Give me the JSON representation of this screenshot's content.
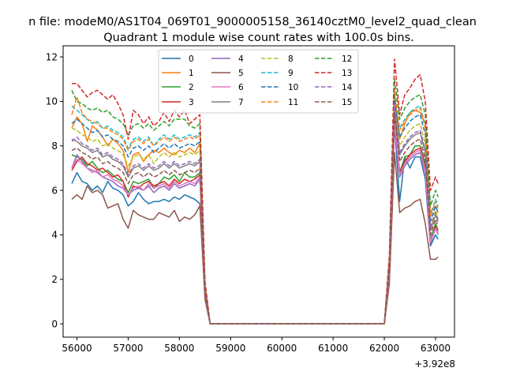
{
  "chart_data": {
    "type": "line",
    "suptitle": "n file: modeM0/AS1T04_069T01_9000005158_36140cztM0_level2_quad_clean",
    "title": "Quadrant 1 module wise count rates with 100.0s bins.",
    "xlabel": "",
    "ylabel": "",
    "x_offset_label": "+3.92e8",
    "xlim": [
      55730,
      63370
    ],
    "ylim": [
      -0.6,
      12.5
    ],
    "xticks": [
      56000,
      57000,
      58000,
      59000,
      60000,
      61000,
      62000,
      63000
    ],
    "xtick_labels": [
      "56000",
      "57000",
      "58000",
      "59000",
      "60000",
      "61000",
      "62000",
      "63000"
    ],
    "yticks": [
      0,
      2,
      4,
      6,
      8,
      10,
      12
    ],
    "ytick_labels": [
      "0",
      "2",
      "4",
      "6",
      "8",
      "10",
      "12"
    ],
    "legend_position": "upper center",
    "x": [
      55900,
      56000,
      56100,
      56200,
      56300,
      56400,
      56500,
      56600,
      56700,
      56800,
      56900,
      57000,
      57100,
      57200,
      57300,
      57400,
      57500,
      57600,
      57700,
      57800,
      57900,
      58000,
      58100,
      58200,
      58300,
      58400,
      58500,
      58600,
      58700,
      62000,
      62100,
      62200,
      62300,
      62400,
      62500,
      62600,
      62700,
      62800,
      62900,
      63000,
      63050
    ],
    "series": [
      {
        "name": "0",
        "color": "#1f77b4",
        "dash": false,
        "values": [
          6.3,
          6.8,
          6.4,
          6.3,
          6.0,
          6.2,
          5.9,
          6.4,
          6.1,
          6.0,
          5.8,
          5.3,
          5.5,
          5.9,
          5.6,
          5.4,
          5.5,
          5.5,
          5.6,
          5.5,
          5.7,
          5.6,
          5.8,
          5.7,
          5.6,
          5.4,
          1.3,
          0,
          0,
          0,
          2.0,
          9.0,
          5.5,
          7.5,
          7.0,
          7.5,
          7.5,
          6.5,
          3.5,
          4.0,
          3.8
        ]
      },
      {
        "name": "1",
        "color": "#ff7f0e",
        "dash": false,
        "values": [
          8.8,
          9.3,
          9.0,
          8.2,
          8.9,
          8.7,
          8.4,
          8.0,
          8.3,
          8.1,
          7.8,
          6.8,
          7.6,
          7.7,
          7.3,
          7.6,
          7.8,
          7.7,
          7.9,
          7.7,
          7.6,
          7.8,
          7.7,
          7.9,
          7.7,
          8.1,
          1.6,
          0,
          0,
          0,
          2.8,
          10.3,
          8.3,
          9.0,
          9.5,
          9.6,
          9.5,
          9.0,
          5.0,
          5.3,
          5.0
        ]
      },
      {
        "name": "2",
        "color": "#2ca02c",
        "dash": false,
        "values": [
          7.6,
          7.5,
          7.4,
          7.1,
          7.3,
          7.0,
          6.8,
          6.9,
          6.7,
          6.5,
          6.4,
          5.9,
          6.4,
          6.3,
          6.4,
          6.5,
          6.1,
          6.3,
          6.6,
          6.5,
          6.7,
          6.4,
          6.8,
          6.6,
          6.6,
          6.8,
          1.4,
          0,
          0,
          0,
          2.4,
          9.3,
          6.8,
          7.5,
          7.6,
          8.0,
          8.0,
          7.2,
          3.8,
          4.5,
          4.2
        ]
      },
      {
        "name": "3",
        "color": "#d62728",
        "dash": false,
        "values": [
          6.9,
          7.3,
          7.5,
          7.2,
          7.1,
          6.9,
          7.0,
          6.8,
          6.6,
          6.7,
          6.4,
          5.7,
          6.2,
          6.1,
          6.3,
          6.4,
          6.2,
          6.3,
          6.4,
          6.2,
          6.5,
          6.3,
          6.5,
          6.4,
          6.5,
          6.7,
          1.4,
          0,
          0,
          0,
          2.3,
          9.2,
          6.8,
          7.3,
          7.6,
          7.8,
          7.9,
          7.0,
          3.6,
          4.4,
          4.1
        ]
      },
      {
        "name": "4",
        "color": "#9467bd",
        "dash": false,
        "values": [
          7.0,
          7.6,
          7.3,
          7.0,
          6.9,
          6.8,
          6.6,
          6.5,
          6.4,
          6.2,
          6.1,
          5.8,
          6.0,
          6.1,
          6.0,
          6.2,
          5.9,
          6.1,
          6.2,
          6.0,
          6.3,
          6.1,
          6.2,
          6.3,
          6.2,
          6.5,
          1.4,
          0,
          0,
          0,
          2.2,
          9.0,
          6.6,
          7.1,
          7.4,
          7.6,
          7.7,
          6.8,
          3.6,
          4.3,
          4.0
        ]
      },
      {
        "name": "5",
        "color": "#8c564b",
        "dash": false,
        "values": [
          5.6,
          5.8,
          5.6,
          6.2,
          5.9,
          6.0,
          5.8,
          5.2,
          5.3,
          5.4,
          4.7,
          4.3,
          5.1,
          4.9,
          4.8,
          4.7,
          4.7,
          5.0,
          4.9,
          4.8,
          5.1,
          4.6,
          4.8,
          4.7,
          4.9,
          5.3,
          1.1,
          0,
          0,
          0,
          1.8,
          7.7,
          5.0,
          5.2,
          5.3,
          5.5,
          5.6,
          4.5,
          2.9,
          2.9,
          3.0
        ]
      },
      {
        "name": "6",
        "color": "#e377c2",
        "dash": false,
        "values": [
          7.0,
          7.4,
          7.2,
          7.0,
          6.8,
          6.9,
          6.6,
          6.7,
          6.5,
          6.4,
          6.2,
          5.8,
          6.1,
          6.2,
          6.0,
          6.3,
          6.1,
          6.2,
          6.3,
          6.1,
          6.4,
          6.2,
          6.3,
          6.4,
          6.3,
          6.6,
          1.4,
          0,
          0,
          0,
          2.2,
          9.1,
          6.7,
          7.2,
          7.5,
          7.7,
          7.8,
          6.9,
          3.7,
          4.3,
          4.1
        ]
      },
      {
        "name": "7",
        "color": "#7f7f7f",
        "dash": false,
        "values": [
          8.3,
          8.2,
          8.0,
          7.9,
          7.7,
          7.8,
          7.5,
          7.6,
          7.4,
          7.3,
          7.1,
          6.6,
          7.0,
          7.1,
          6.9,
          7.1,
          6.9,
          7.0,
          7.2,
          7.0,
          7.2,
          7.0,
          7.1,
          7.2,
          7.1,
          7.3,
          1.5,
          0,
          0,
          0,
          2.5,
          9.8,
          7.6,
          8.0,
          8.3,
          8.5,
          8.6,
          7.7,
          4.2,
          4.9,
          4.6
        ]
      },
      {
        "name": "8",
        "color": "#bcbd22",
        "dash": true,
        "values": [
          8.8,
          8.7,
          8.5,
          8.4,
          8.2,
          8.3,
          8.0,
          8.1,
          7.9,
          7.8,
          7.6,
          7.1,
          7.5,
          7.6,
          7.4,
          7.6,
          7.2,
          7.5,
          7.7,
          7.5,
          7.7,
          7.5,
          7.6,
          7.7,
          7.6,
          7.8,
          1.6,
          0,
          0,
          0,
          2.7,
          10.0,
          8.0,
          8.4,
          8.7,
          8.9,
          9.0,
          8.1,
          4.4,
          5.1,
          4.8
        ]
      },
      {
        "name": "9",
        "color": "#17becf",
        "dash": true,
        "values": [
          9.8,
          9.6,
          9.4,
          9.2,
          9.0,
          9.1,
          8.8,
          8.9,
          8.7,
          8.6,
          8.4,
          7.9,
          8.3,
          8.4,
          8.2,
          8.4,
          8.0,
          8.3,
          8.5,
          8.3,
          8.5,
          8.3,
          8.4,
          8.5,
          8.4,
          8.6,
          1.7,
          0,
          0,
          0,
          2.9,
          10.4,
          8.8,
          9.2,
          9.5,
          9.7,
          9.8,
          8.9,
          4.9,
          5.6,
          5.3
        ]
      },
      {
        "name": "10",
        "color": "#1f77b4",
        "dash": true,
        "values": [
          9.0,
          9.2,
          9.0,
          8.8,
          8.6,
          8.7,
          8.4,
          8.5,
          8.3,
          8.2,
          8.0,
          7.5,
          7.9,
          8.0,
          7.8,
          8.0,
          7.7,
          7.9,
          8.1,
          7.9,
          8.1,
          7.9,
          8.0,
          8.1,
          8.0,
          8.2,
          1.6,
          0,
          0,
          0,
          2.8,
          10.2,
          8.4,
          8.8,
          9.1,
          9.3,
          9.4,
          8.5,
          4.6,
          5.3,
          5.0
        ]
      },
      {
        "name": "11",
        "color": "#ff7f0e",
        "dash": true,
        "values": [
          9.4,
          10.2,
          9.5,
          9.2,
          9.1,
          9.0,
          8.8,
          8.8,
          8.6,
          8.5,
          8.3,
          7.8,
          8.2,
          8.3,
          8.1,
          8.3,
          8.0,
          8.2,
          8.4,
          8.2,
          8.4,
          8.2,
          8.3,
          8.4,
          8.3,
          8.5,
          1.7,
          0,
          0,
          0,
          2.9,
          10.5,
          8.7,
          9.1,
          9.4,
          9.6,
          9.7,
          8.8,
          4.8,
          5.5,
          5.2
        ]
      },
      {
        "name": "12",
        "color": "#2ca02c",
        "dash": true,
        "values": [
          10.5,
          10.0,
          9.9,
          9.7,
          9.6,
          9.7,
          9.5,
          9.6,
          9.3,
          9.2,
          9.0,
          8.5,
          8.9,
          9.0,
          8.8,
          9.0,
          8.7,
          8.9,
          9.1,
          8.9,
          9.2,
          9.2,
          9.2,
          8.9,
          8.8,
          9.0,
          1.8,
          0,
          0,
          0,
          3.0,
          11.0,
          9.2,
          9.7,
          10.0,
          10.2,
          10.3,
          9.4,
          5.3,
          6.0,
          5.7
        ]
      },
      {
        "name": "13",
        "color": "#d62728",
        "dash": true,
        "values": [
          10.8,
          10.8,
          10.5,
          10.2,
          10.4,
          10.5,
          10.3,
          10.1,
          10.3,
          9.9,
          9.4,
          8.3,
          9.6,
          9.4,
          9.0,
          9.3,
          8.9,
          9.1,
          9.5,
          9.1,
          9.6,
          9.3,
          9.6,
          9.0,
          9.2,
          9.4,
          1.9,
          0,
          0,
          0,
          3.1,
          11.9,
          9.4,
          10.3,
          10.6,
          11.0,
          11.2,
          10.0,
          6.0,
          6.6,
          6.3
        ]
      },
      {
        "name": "14",
        "color": "#9467bd",
        "dash": true,
        "values": [
          8.2,
          8.4,
          8.1,
          8.0,
          7.8,
          7.9,
          7.6,
          7.7,
          7.5,
          7.4,
          7.2,
          6.7,
          7.1,
          7.2,
          7.0,
          7.2,
          7.0,
          7.1,
          7.3,
          7.1,
          7.3,
          7.1,
          7.2,
          7.3,
          7.2,
          7.4,
          1.5,
          0,
          0,
          0,
          2.6,
          9.9,
          7.7,
          8.1,
          8.4,
          8.6,
          8.7,
          7.8,
          4.3,
          5.0,
          4.7
        ]
      },
      {
        "name": "15",
        "color": "#8c564b",
        "dash": true,
        "values": [
          7.8,
          7.9,
          7.7,
          7.6,
          7.4,
          7.5,
          7.2,
          7.3,
          7.1,
          7.0,
          6.8,
          6.3,
          6.7,
          6.8,
          6.6,
          6.8,
          6.6,
          6.7,
          6.9,
          6.7,
          6.9,
          6.7,
          6.8,
          6.9,
          6.8,
          7.0,
          1.4,
          0,
          0,
          0,
          2.4,
          9.5,
          7.3,
          7.7,
          8.0,
          8.2,
          8.3,
          7.4,
          4.0,
          4.7,
          4.4
        ]
      }
    ]
  }
}
